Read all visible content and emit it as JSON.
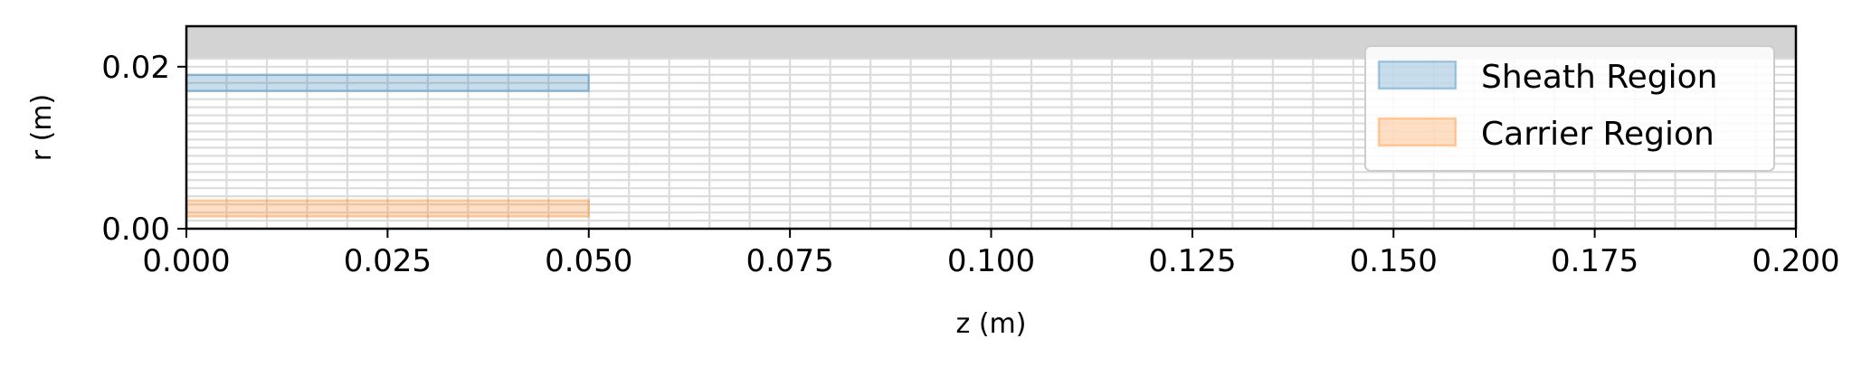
{
  "chart_data": {
    "type": "area",
    "title": "",
    "xlabel": "z (m)",
    "ylabel": "r (m)",
    "xlim": [
      0.0,
      0.2
    ],
    "ylim": [
      0.0,
      0.025
    ],
    "x_ticks": [
      "0.000",
      "0.025",
      "0.050",
      "0.075",
      "0.100",
      "0.125",
      "0.150",
      "0.175",
      "0.200"
    ],
    "y_ticks": [
      "0.00",
      "0.02"
    ],
    "grid": true,
    "legend_position": "top-right",
    "background_band": {
      "r_min": 0.021,
      "r_max": 0.025,
      "color": "#d3d3d3"
    },
    "mesh": {
      "color": "#dcdcdc",
      "z_step": 0.005,
      "r_step": 0.001,
      "r_max": 0.021
    },
    "series": [
      {
        "name": "Sheath Region",
        "z_range": [
          0.0,
          0.05
        ],
        "r_range": [
          0.017,
          0.019
        ],
        "color": "#1f77b4",
        "alpha": 0.25
      },
      {
        "name": "Carrier Region",
        "z_range": [
          0.0,
          0.05
        ],
        "r_range": [
          0.0015,
          0.0035
        ],
        "color": "#ff7f0e",
        "alpha": 0.25
      }
    ]
  }
}
